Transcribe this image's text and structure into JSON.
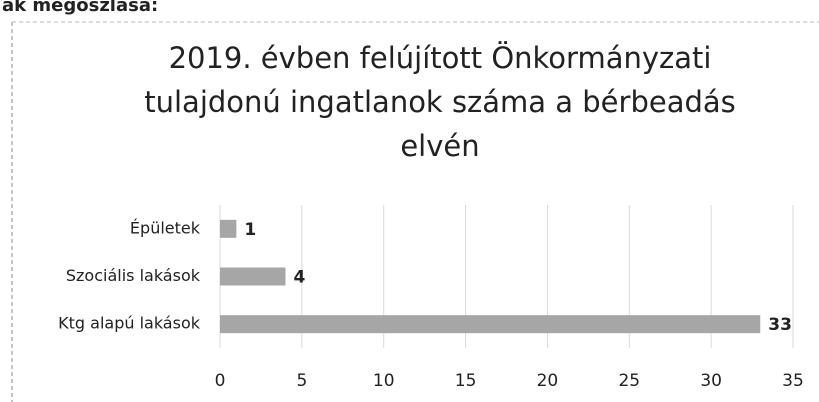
{
  "page_text": "ak megoszlása:",
  "chart_data": {
    "type": "bar",
    "orientation": "horizontal",
    "title_lines": [
      "2019. évben felújított Önkormányzati",
      "tulajdonú ingatlanok száma a bérbeadás",
      "elvén"
    ],
    "categories": [
      "Épületek",
      "Szociális lakások",
      "Ktg alapú lakások"
    ],
    "values": [
      1,
      4,
      33
    ],
    "color": "#a6a6a6",
    "xlim": [
      0,
      35
    ],
    "xticks": [
      0,
      5,
      10,
      15,
      20,
      25,
      30,
      35
    ],
    "grid": true
  }
}
